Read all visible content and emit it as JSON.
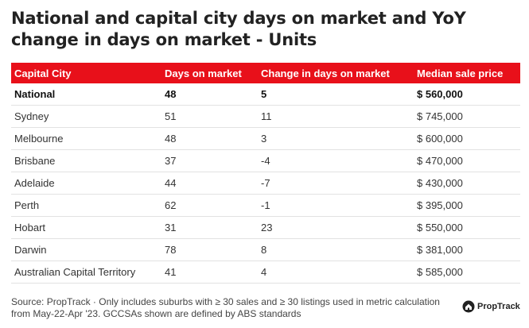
{
  "title": "National and capital city days on market and YoY change in days on market - Units",
  "table": {
    "headers": [
      "Capital City",
      "Days on market",
      "Change in days on market",
      "Median sale price"
    ],
    "rows": [
      [
        "National",
        "48",
        "5",
        "$ 560,000"
      ],
      [
        "Sydney",
        "51",
        "11",
        "$ 745,000"
      ],
      [
        "Melbourne",
        "48",
        "3",
        "$ 600,000"
      ],
      [
        "Brisbane",
        "37",
        "-4",
        "$ 470,000"
      ],
      [
        "Adelaide",
        "44",
        "-7",
        "$ 430,000"
      ],
      [
        "Perth",
        "62",
        "-1",
        "$ 395,000"
      ],
      [
        "Hobart",
        "31",
        "23",
        "$ 550,000"
      ],
      [
        "Darwin",
        "78",
        "8",
        "$ 381,000"
      ],
      [
        "Australian Capital Territory",
        "41",
        "4",
        "$ 585,000"
      ]
    ]
  },
  "footnote": "Source: PropTrack · Only includes suburbs with ≥ 30 sales and ≥ 30 listings used in metric calculation from May-22-Apr '23. GCCSAs shown are defined by ABS standards",
  "logo": {
    "text": "PropTrack",
    "icon": "proptrack-house-icon"
  },
  "colors": {
    "header_bg": "#e8101a",
    "header_text": "#ffffff"
  }
}
